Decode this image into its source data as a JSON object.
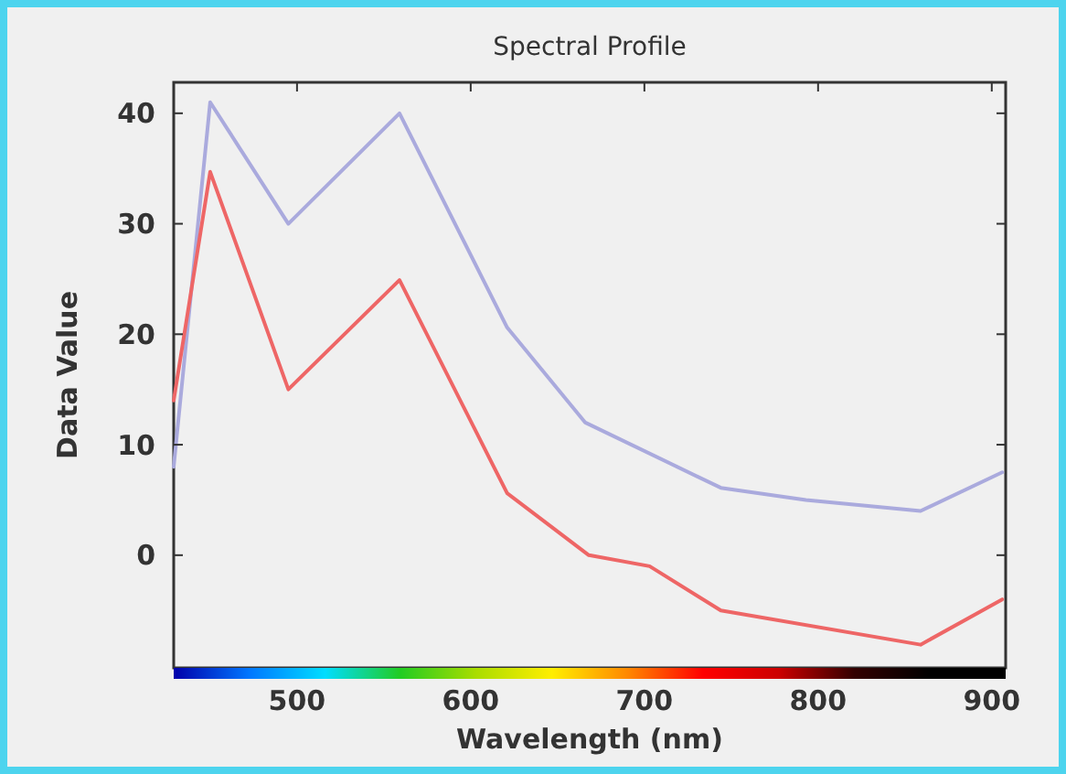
{
  "chart_data": {
    "type": "line",
    "title": "Spectral Profile",
    "xlabel": "Wavelength (nm)",
    "ylabel": "Data Value",
    "xlim": [
      429,
      908
    ],
    "ylim": [
      -10.2,
      42.8
    ],
    "xticks": [
      500,
      600,
      700,
      800,
      900
    ],
    "yticks": [
      0,
      10,
      20,
      30,
      40
    ],
    "grid": false,
    "series": [
      {
        "color": "#aaaadd",
        "x": [
          429,
          450,
          495,
          559,
          621,
          666,
          744,
          793,
          859,
          906
        ],
        "values": [
          8,
          41,
          30,
          40,
          20.6,
          12,
          6.1,
          5,
          4,
          7.5
        ]
      },
      {
        "color": "#ee6666",
        "x": [
          429,
          450,
          495,
          559,
          621,
          668,
          703,
          744,
          859,
          906
        ],
        "values": [
          14,
          34.7,
          15,
          24.9,
          5.6,
          0,
          -1,
          -5,
          -8.1,
          -4
        ]
      }
    ]
  }
}
